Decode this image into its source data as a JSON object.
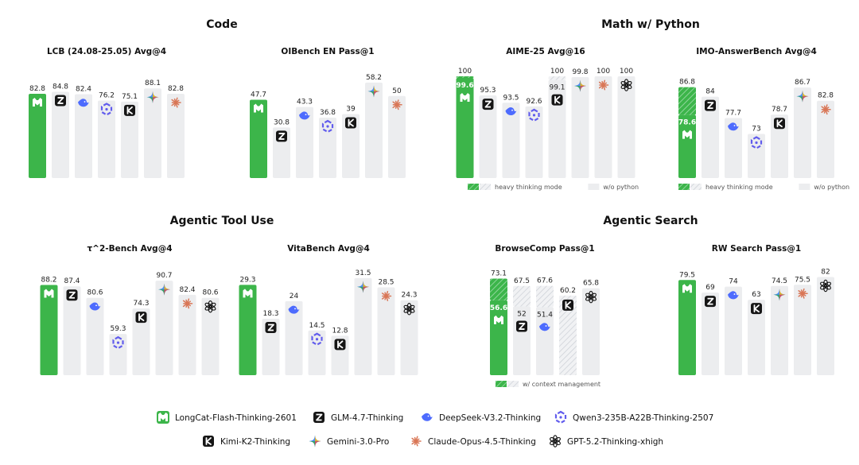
{
  "sections": [
    {
      "title": "Code"
    },
    {
      "title": "Math w/ Python"
    },
    {
      "title": "Agentic Tool Use"
    },
    {
      "title": "Agentic Search"
    }
  ],
  "models": [
    {
      "name": "LongCat-Flash-Thinking-2601",
      "icon": "longcat-icon"
    },
    {
      "name": "GLM-4.7-Thinking",
      "icon": "glm-icon"
    },
    {
      "name": "DeepSeek-V3.2-Thinking",
      "icon": "deepseek-icon"
    },
    {
      "name": "Qwen3-235B-A22B-Thinking-2507",
      "icon": "qwen-icon"
    },
    {
      "name": "Kimi-K2-Thinking",
      "icon": "kimi-icon"
    },
    {
      "name": "Gemini-3.0-Pro",
      "icon": "gemini-icon"
    },
    {
      "name": "Claude-Opus-4.5-Thinking",
      "icon": "claude-icon"
    },
    {
      "name": "GPT-5.2-Thinking-xhigh",
      "icon": "gpt-icon"
    }
  ],
  "colors": {
    "longcat": "#3cb54a",
    "bar_gray": "#ecedef",
    "hatch": "#c9ccd2",
    "glm": "#1a1a1a",
    "deepseek": "#4d6bfe",
    "qwen": "#615ced",
    "kimi": "#111111",
    "claude": "#d97757"
  },
  "chart_data": [
    {
      "type": "bar",
      "title": "LCB (24.08-25.05) Avg@4",
      "ylim": [
        0,
        100
      ],
      "bars": [
        {
          "model": "longcat",
          "value": 82.8,
          "label": "82.8"
        },
        {
          "model": "glm",
          "value": 84.8,
          "label": "84.8"
        },
        {
          "model": "deepseek",
          "value": 82.4,
          "label": "82.4"
        },
        {
          "model": "qwen",
          "value": 76.2,
          "label": "76.2"
        },
        {
          "model": "kimi",
          "value": 75.1,
          "label": "75.1"
        },
        {
          "model": "gemini",
          "value": 88.1,
          "label": "88.1"
        },
        {
          "model": "claude",
          "value": 82.8,
          "label": "82.8"
        }
      ]
    },
    {
      "type": "bar",
      "title": "OIBench EN Pass@1",
      "ylim": [
        0,
        62
      ],
      "bars": [
        {
          "model": "longcat",
          "value": 47.7,
          "label": "47.7"
        },
        {
          "model": "glm",
          "value": 30.8,
          "label": "30.8"
        },
        {
          "model": "deepseek",
          "value": 43.3,
          "label": "43.3"
        },
        {
          "model": "qwen",
          "value": 36.8,
          "label": "36.8"
        },
        {
          "model": "kimi",
          "value": 39,
          "label": "39"
        },
        {
          "model": "gemini",
          "value": 58.2,
          "label": "58.2"
        },
        {
          "model": "claude",
          "value": 50,
          "label": "50"
        }
      ]
    },
    {
      "type": "bar",
      "title": "AIME-25 Avg@16",
      "ylim": [
        75,
        100
      ],
      "bars": [
        {
          "model": "longcat",
          "value": 99.6,
          "label": "99.6",
          "top": 100,
          "top_label": "100",
          "top_style": "hatch"
        },
        {
          "model": "glm",
          "value": 95.3,
          "label": "95.3"
        },
        {
          "model": "deepseek",
          "value": 93.5,
          "label": "93.5"
        },
        {
          "model": "qwen",
          "value": 92.6,
          "label": "92.6"
        },
        {
          "model": "kimi",
          "value": 99.1,
          "label": "99.1",
          "top": 100,
          "top_label": "100",
          "top_style": "hatch"
        },
        {
          "model": "gemini",
          "value": 99.8,
          "label": "99.8"
        },
        {
          "model": "claude",
          "value": 100,
          "label": "100"
        },
        {
          "model": "gpt",
          "value": 100,
          "label": "100"
        }
      ],
      "notes": [
        {
          "label": "heavy thinking mode",
          "swatch": "hatch"
        },
        {
          "label": "w/o python",
          "swatch": "gray"
        }
      ]
    },
    {
      "type": "bar",
      "title": "IMO-AnswerBench Avg@4",
      "ylim": [
        60,
        90
      ],
      "bars": [
        {
          "model": "longcat",
          "value": 78.6,
          "label": "78.6",
          "top": 86.8,
          "top_label": "86.8",
          "top_style": "hatch"
        },
        {
          "model": "glm",
          "value": 84,
          "label": "84"
        },
        {
          "model": "deepseek",
          "value": 77.7,
          "label": "77.7"
        },
        {
          "model": "qwen",
          "value": 73,
          "label": "73"
        },
        {
          "model": "kimi",
          "value": 78.7,
          "label": "78.7"
        },
        {
          "model": "gemini",
          "value": 86.7,
          "label": "86.7"
        },
        {
          "model": "claude",
          "value": 82.8,
          "label": "82.8"
        }
      ],
      "notes": [
        {
          "label": "heavy thinking mode",
          "swatch": "hatch"
        },
        {
          "label": "w/o python",
          "swatch": "gray"
        }
      ]
    },
    {
      "type": "bar",
      "title": "τ^2-Bench Avg@4",
      "ylim": [
        35,
        95
      ],
      "bars": [
        {
          "model": "longcat",
          "value": 88.2,
          "label": "88.2"
        },
        {
          "model": "glm",
          "value": 87.4,
          "label": "87.4"
        },
        {
          "model": "deepseek",
          "value": 80.6,
          "label": "80.6"
        },
        {
          "model": "qwen",
          "value": 59.3,
          "label": "59.3"
        },
        {
          "model": "kimi",
          "value": 74.3,
          "label": "74.3"
        },
        {
          "model": "gemini",
          "value": 90.7,
          "label": "90.7"
        },
        {
          "model": "claude",
          "value": 82.4,
          "label": "82.4"
        },
        {
          "model": "gpt",
          "value": 80.6,
          "label": "80.6"
        }
      ]
    },
    {
      "type": "bar",
      "title": "VitaBench Avg@4",
      "ylim": [
        0,
        33
      ],
      "bars": [
        {
          "model": "longcat",
          "value": 29.3,
          "label": "29.3"
        },
        {
          "model": "glm",
          "value": 18.3,
          "label": "18.3"
        },
        {
          "model": "deepseek",
          "value": 24,
          "label": "24"
        },
        {
          "model": "qwen",
          "value": 14.5,
          "label": "14.5"
        },
        {
          "model": "kimi",
          "value": 12.8,
          "label": "12.8"
        },
        {
          "model": "gemini",
          "value": 31.5,
          "label": "31.5"
        },
        {
          "model": "claude",
          "value": 28.5,
          "label": "28.5"
        },
        {
          "model": "gpt",
          "value": 24.3,
          "label": "24.3"
        }
      ]
    },
    {
      "type": "bar",
      "title": "BrowseComp Pass@1",
      "ylim": [
        0,
        77
      ],
      "bars": [
        {
          "model": "longcat",
          "value": 56.6,
          "label": "56.6",
          "top": 73.1,
          "top_label": "73.1",
          "top_style": "hatch"
        },
        {
          "model": "glm",
          "value": 52,
          "label": "52",
          "top": 67.5,
          "top_label": "67.5",
          "top_style": "hatch"
        },
        {
          "model": "deepseek",
          "value": 51.4,
          "label": "51.4",
          "top": 67.6,
          "top_label": "67.6",
          "top_style": "hatch"
        },
        {
          "model": "kimi",
          "value": 0,
          "label": "",
          "top": 60.2,
          "top_label": "60.2",
          "top_style": "hatch"
        },
        {
          "model": "gpt",
          "value": 65.8,
          "label": "65.8"
        }
      ],
      "notes": [
        {
          "label": "w/ context management",
          "swatch": "hatch"
        }
      ]
    },
    {
      "type": "bar",
      "title": "RW Search Pass@1",
      "ylim": [
        0,
        85
      ],
      "bars": [
        {
          "model": "longcat",
          "value": 79.5,
          "label": "79.5"
        },
        {
          "model": "glm",
          "value": 69,
          "label": "69"
        },
        {
          "model": "deepseek",
          "value": 74,
          "label": "74"
        },
        {
          "model": "kimi",
          "value": 63,
          "label": "63"
        },
        {
          "model": "gemini",
          "value": 74.5,
          "label": "74.5"
        },
        {
          "model": "claude",
          "value": 75.5,
          "label": "75.5"
        },
        {
          "model": "gpt",
          "value": 82,
          "label": "82"
        }
      ]
    }
  ]
}
